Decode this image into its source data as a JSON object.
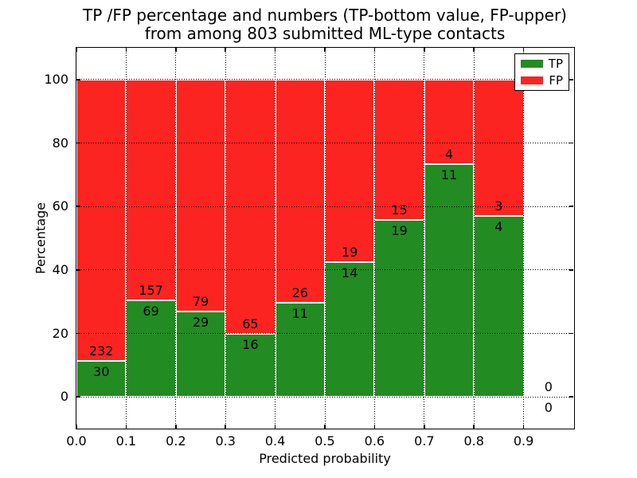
{
  "figure": {
    "colors": {
      "tp": "#228b22",
      "fp": "#fc2420",
      "text": "#000000",
      "grid": "#000000",
      "spine": "#000000",
      "bar_edge": "#ffffff",
      "bg": "#ffffff"
    }
  },
  "chart_data": {
    "type": "bar",
    "stacked": true,
    "normalized": "percent",
    "title_lines": [
      "TP /FP percentage and numbers (TP-bottom value, FP-upper)",
      "from among 803 submitted ML-type contacts"
    ],
    "xlabel": "Predicted probability",
    "ylabel": "Percentage",
    "total_submitted": 803,
    "x_bin_starts": [
      0.0,
      0.1,
      0.2,
      0.3,
      0.4,
      0.5,
      0.6,
      0.7,
      0.8,
      0.9
    ],
    "bin_width": 0.1,
    "series": [
      {
        "name": "TP",
        "counts": [
          30,
          69,
          29,
          16,
          11,
          14,
          19,
          11,
          4,
          0
        ]
      },
      {
        "name": "FP",
        "counts": [
          232,
          157,
          79,
          65,
          26,
          19,
          15,
          4,
          3,
          0
        ]
      }
    ],
    "tp_percent": [
      11.5,
      30.5,
      26.9,
      19.8,
      29.7,
      42.4,
      55.9,
      73.3,
      57.1,
      0
    ],
    "xticks": [
      0.0,
      0.1,
      0.2,
      0.3,
      0.4,
      0.5,
      0.6,
      0.7,
      0.8,
      0.9
    ],
    "xtick_labels": [
      "0.0",
      "0.1",
      "0.2",
      "0.3",
      "0.4",
      "0.5",
      "0.6",
      "0.7",
      "0.8",
      "0.9"
    ],
    "yticks": [
      0,
      20,
      40,
      60,
      80,
      100
    ],
    "ytick_labels": [
      "0",
      "20",
      "40",
      "60",
      "80",
      "100"
    ],
    "xlim": [
      0.0,
      1.0
    ],
    "ylim": [
      -10,
      110
    ],
    "grid": true,
    "grid_style": "dotted",
    "legend": [
      "TP",
      "FP"
    ],
    "legend_position": "upper right"
  }
}
